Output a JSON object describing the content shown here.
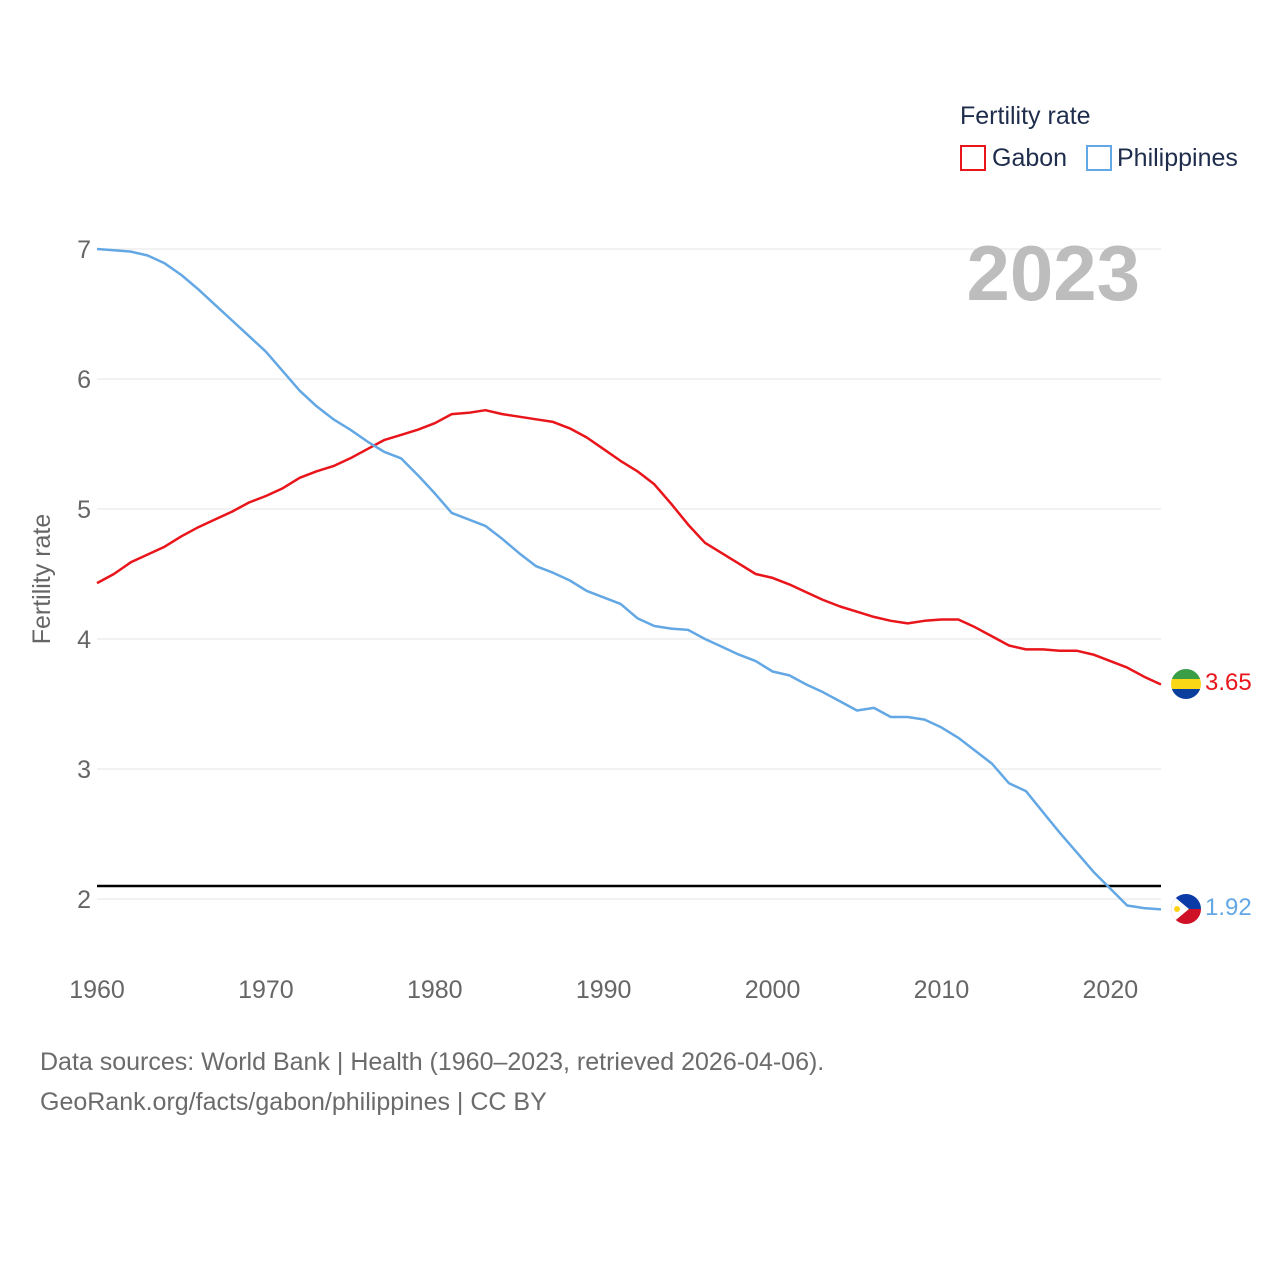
{
  "chart_data": {
    "type": "line",
    "legend_title": "Fertility rate",
    "ylabel": "Fertility rate",
    "xlabel": "",
    "year_label": "2023",
    "x": [
      1960,
      1961,
      1962,
      1963,
      1964,
      1965,
      1966,
      1967,
      1968,
      1969,
      1970,
      1971,
      1972,
      1973,
      1974,
      1975,
      1976,
      1977,
      1978,
      1979,
      1980,
      1981,
      1982,
      1983,
      1984,
      1985,
      1986,
      1987,
      1988,
      1989,
      1990,
      1991,
      1992,
      1993,
      1994,
      1995,
      1996,
      1997,
      1998,
      1999,
      2000,
      2001,
      2002,
      2003,
      2004,
      2005,
      2006,
      2007,
      2008,
      2009,
      2010,
      2011,
      2012,
      2013,
      2014,
      2015,
      2016,
      2017,
      2018,
      2019,
      2020,
      2021,
      2022,
      2023
    ],
    "series": [
      {
        "name": "Gabon",
        "color": "#e8151b",
        "end_label": "3.65",
        "values": [
          4.43,
          4.5,
          4.59,
          4.65,
          4.71,
          4.79,
          4.86,
          4.92,
          4.98,
          5.05,
          5.1,
          5.16,
          5.24,
          5.29,
          5.33,
          5.39,
          5.46,
          5.53,
          5.57,
          5.61,
          5.66,
          5.73,
          5.74,
          5.76,
          5.73,
          5.71,
          5.69,
          5.67,
          5.62,
          5.55,
          5.46,
          5.37,
          5.29,
          5.19,
          5.04,
          4.88,
          4.74,
          4.66,
          4.58,
          4.5,
          4.47,
          4.42,
          4.36,
          4.3,
          4.25,
          4.21,
          4.17,
          4.14,
          4.12,
          4.14,
          4.15,
          4.15,
          4.09,
          4.02,
          3.95,
          3.92,
          3.92,
          3.91,
          3.91,
          3.88,
          3.83,
          3.78,
          3.71,
          3.65
        ]
      },
      {
        "name": "Philippines",
        "color": "#63a8e4",
        "end_label": "1.92",
        "values": [
          7.0,
          6.99,
          6.98,
          6.95,
          6.89,
          6.8,
          6.69,
          6.57,
          6.45,
          6.33,
          6.21,
          6.06,
          5.91,
          5.79,
          5.69,
          5.61,
          5.52,
          5.44,
          5.39,
          5.26,
          5.12,
          4.97,
          4.92,
          4.87,
          4.77,
          4.66,
          4.56,
          4.51,
          4.45,
          4.37,
          4.32,
          4.27,
          4.16,
          4.1,
          4.08,
          4.07,
          4.0,
          3.94,
          3.88,
          3.83,
          3.75,
          3.72,
          3.65,
          3.59,
          3.52,
          3.45,
          3.47,
          3.4,
          3.4,
          3.38,
          3.32,
          3.24,
          3.14,
          3.04,
          2.89,
          2.83,
          2.67,
          2.51,
          2.36,
          2.21,
          2.08,
          1.95,
          1.93,
          1.92
        ]
      }
    ],
    "reference_line": {
      "value": 2.1,
      "color": "#000000"
    },
    "ylim": [
      1.6,
      7.15
    ],
    "xlim": [
      1960,
      2023
    ],
    "y_ticks": [
      2,
      3,
      4,
      5,
      6,
      7
    ],
    "x_ticks": [
      1960,
      1970,
      1980,
      1990,
      2000,
      2010,
      2020
    ],
    "legend_position": "top-right",
    "grid": true
  },
  "flags": {
    "gabon": [
      "#3a9e47",
      "#f9d616",
      "#0b3f9e"
    ],
    "philippines": [
      "#0b3ba7",
      "#ce1126",
      "#ffffff",
      "#fcd116"
    ]
  },
  "footer": {
    "line1": "Data sources: World Bank | Health (1960–2023, retrieved 2026-04-06).",
    "line2": "GeoRank.org/facts/gabon/philippines | CC BY"
  }
}
